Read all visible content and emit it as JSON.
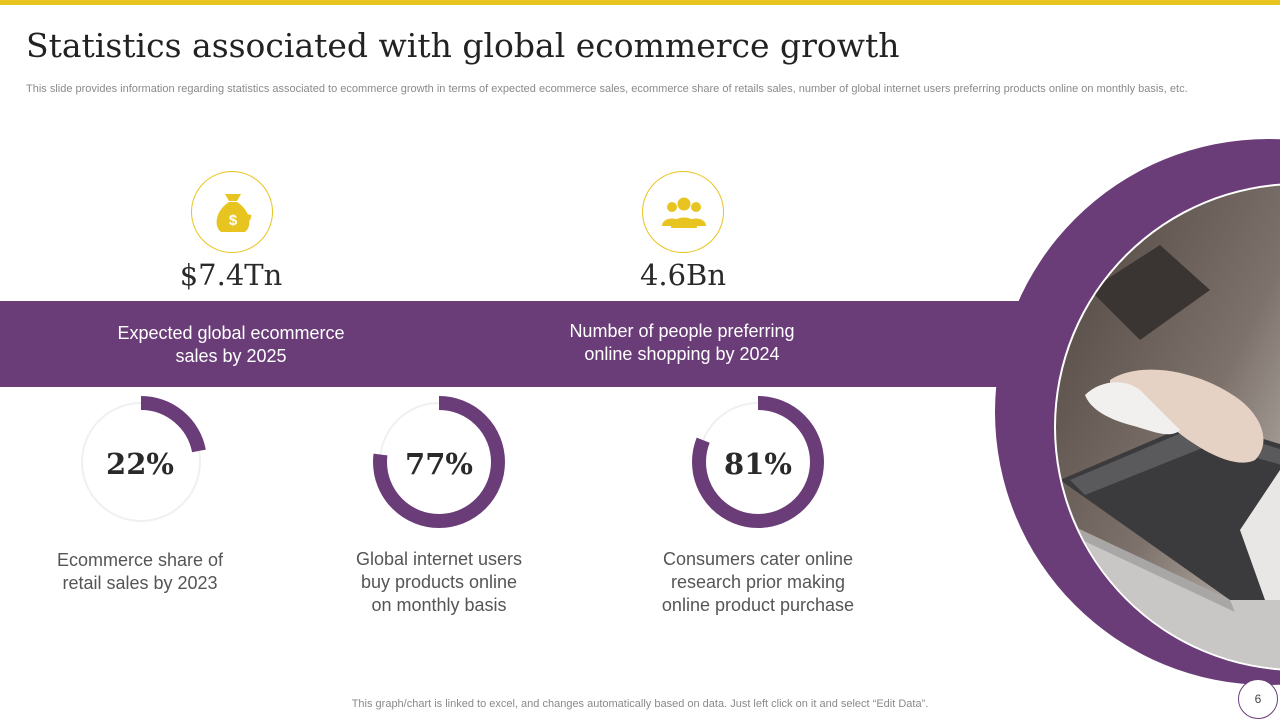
{
  "slide": {
    "title": "Statistics associated with global ecommerce growth",
    "subtitle": "This slide provides information regarding statistics associated to ecommerce growth in terms of expected ecommerce sales, ecommerce share of retails sales, number of global internet users preferring products online on monthly basis, etc.",
    "footer_note": "This graph/chart is linked to excel, and changes automatically based on data. Just left click on it and select “Edit Data”.",
    "page_number": "6"
  },
  "colors": {
    "accent_yellow": "#e8c420",
    "primary_purple": "#6a3d78",
    "track_gray": "#f0f0f0"
  },
  "stats": [
    {
      "icon": "money-bag-icon",
      "value": "$7.4Tn",
      "label_line1": "Expected global ecommerce",
      "label_line2": "sales by 2025"
    },
    {
      "icon": "people-group-icon",
      "value": "4.6Bn",
      "label_line1": "Number of people preferring",
      "label_line2": "online shopping by 2024"
    }
  ],
  "chart_data": {
    "type": "donut",
    "series": [
      {
        "value": 22,
        "label": "22%",
        "desc_lines": [
          "Ecommerce share of",
          "retail sales by 2023"
        ]
      },
      {
        "value": 77,
        "label": "77%",
        "desc_lines": [
          "Global internet users",
          "buy products online",
          "on monthly basis"
        ]
      },
      {
        "value": 81,
        "label": "81%",
        "desc_lines": [
          "Consumers cater online",
          "research prior making",
          "online product purchase"
        ]
      }
    ],
    "max": 100
  }
}
